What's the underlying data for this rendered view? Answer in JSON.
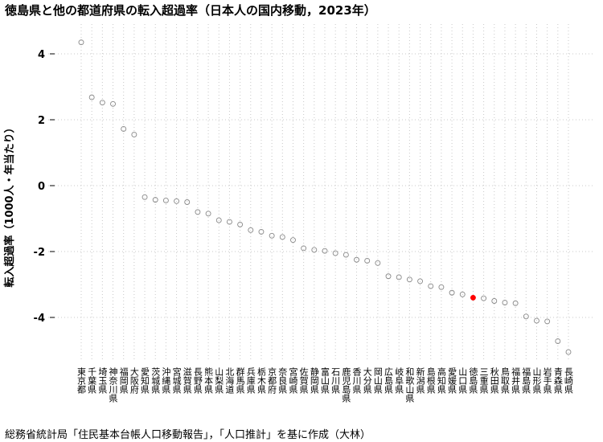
{
  "chart_data": {
    "type": "scatter",
    "title": "徳島県と他の都道府県の転入超過率（日本人の国内移動，2023年）",
    "ylabel": "転入超過率（1000人・年当たり）",
    "xlabel": "",
    "source": "総務省統計局「住民基本台帳人口移動報告」，「人口推計」を基に作成（大林）",
    "ylim": [
      -4.75,
      4.45
    ],
    "yticks": [
      -4,
      -2,
      0,
      2,
      4
    ],
    "grid": true,
    "categories": [
      "東京都",
      "千葉県",
      "埼玉県",
      "神奈川県",
      "福岡県",
      "大阪府",
      "愛知県",
      "茨城県",
      "沖縄県",
      "宮城県",
      "滋賀県",
      "長野県",
      "熊本県",
      "山梨県",
      "北海道",
      "群馬県",
      "兵庫県",
      "栃木県",
      "京都府",
      "奈良県",
      "宮崎県",
      "佐賀県",
      "静岡県",
      "富山県",
      "石川県",
      "鹿児島県",
      "香川県",
      "大分県",
      "岡山県",
      "広島県",
      "岐阜県",
      "和歌山県",
      "新潟県",
      "島根県",
      "高知県",
      "愛媛県",
      "山口県",
      "徳島県",
      "三重県",
      "秋田県",
      "鳥取県",
      "福井県",
      "福島県",
      "山形県",
      "岩手県",
      "青森県",
      "長崎県"
    ],
    "values": [
      4.35,
      2.68,
      2.52,
      2.48,
      1.72,
      1.55,
      -0.35,
      -0.43,
      -0.45,
      -0.47,
      -0.5,
      -0.8,
      -0.85,
      -1.05,
      -1.1,
      -1.18,
      -1.35,
      -1.4,
      -1.52,
      -1.56,
      -1.65,
      -1.9,
      -1.95,
      -1.98,
      -2.05,
      -2.1,
      -2.25,
      -2.28,
      -2.35,
      -2.75,
      -2.78,
      -2.85,
      -2.9,
      -3.05,
      -3.08,
      -3.25,
      -3.3,
      -3.4,
      -3.42,
      -3.5,
      -3.55,
      -3.57,
      -3.97,
      -4.1,
      -4.12,
      -4.72,
      -5.05
    ],
    "highlight": "徳島県",
    "colors": {
      "normal": "#888888",
      "highlight": "#ff0000",
      "grid": "#c8c8c8"
    }
  }
}
